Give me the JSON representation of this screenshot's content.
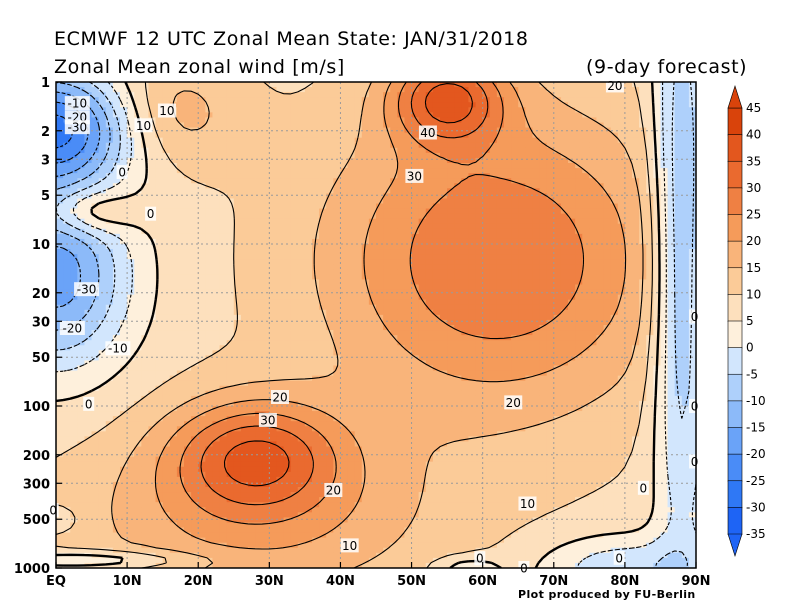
{
  "header": {
    "title_line1": "ECMWF 12 UTC Zonal Mean State: JAN/31/2018",
    "title_line2": "Zonal Mean zonal wind [m/s]",
    "title_right": "(9-day forecast)"
  },
  "footer": {
    "credit": "Plot produced by FU-Berlin"
  },
  "chart_data": {
    "type": "heatmap",
    "subtype": "filled-contour",
    "x_axis": {
      "tick_labels": [
        "EQ",
        "10N",
        "20N",
        "30N",
        "40N",
        "50N",
        "60N",
        "70N",
        "80N",
        "90N"
      ],
      "range_deg": [
        0,
        90
      ]
    },
    "y_axis": {
      "tick_labels": [
        "1",
        "2",
        "3",
        "5",
        "10",
        "20",
        "30",
        "50",
        "100",
        "200",
        "300",
        "500",
        "1000"
      ],
      "tick_values_hpa": [
        1,
        2,
        3,
        5,
        10,
        20,
        30,
        50,
        100,
        200,
        300,
        500,
        1000
      ],
      "range_hpa": [
        1000,
        1
      ],
      "scale": "log",
      "inverted": true
    },
    "grid": "dotted",
    "colorbar": {
      "labels": [
        "45",
        "40",
        "35",
        "30",
        "25",
        "20",
        "15",
        "10",
        "5",
        "0",
        "-5",
        "-10",
        "-15",
        "-20",
        "-25",
        "-30",
        "-35"
      ],
      "levels": [
        -35,
        -30,
        -25,
        -20,
        -15,
        -10,
        -5,
        0,
        5,
        10,
        15,
        20,
        25,
        30,
        35,
        40,
        45
      ],
      "colors": [
        "#1e64f5",
        "#2f78f5",
        "#4a8cf7",
        "#6aa3f8",
        "#8cbaf9",
        "#aed0fb",
        "#d2e6fd",
        "#fef0dc",
        "#fde0bd",
        "#fbcb98",
        "#f9b47a",
        "#f59b5a",
        "#ef8043",
        "#ea6a2f",
        "#e3571e",
        "#d9430b"
      ],
      "extend": "both"
    },
    "contour_labels": [
      {
        "text": "-10",
        "lat": 3,
        "p_hpa": 1.35
      },
      {
        "text": "-20",
        "lat": 3,
        "p_hpa": 1.65
      },
      {
        "text": "-30",
        "lat": 3,
        "p_hpa": 1.9
      },
      {
        "text": "10",
        "lat": 12.3,
        "p_hpa": 1.85
      },
      {
        "text": "10",
        "lat": 15.6,
        "p_hpa": 1.5
      },
      {
        "text": "0",
        "lat": 9.3,
        "p_hpa": 3.6
      },
      {
        "text": "0",
        "lat": 13.3,
        "p_hpa": 6.5
      },
      {
        "text": "-30",
        "lat": 4.3,
        "p_hpa": 19
      },
      {
        "text": "-20",
        "lat": 2.3,
        "p_hpa": 33
      },
      {
        "text": "-10",
        "lat": 8.7,
        "p_hpa": 44
      },
      {
        "text": "0",
        "lat": 4.6,
        "p_hpa": 97
      },
      {
        "text": "20",
        "lat": 31.5,
        "p_hpa": 88
      },
      {
        "text": "30",
        "lat": 29.8,
        "p_hpa": 122
      },
      {
        "text": "20",
        "lat": 39,
        "p_hpa": 330
      },
      {
        "text": "0",
        "lat": -0.4,
        "p_hpa": 440
      },
      {
        "text": "10",
        "lat": 41.3,
        "p_hpa": 725
      },
      {
        "text": "40",
        "lat": 52.3,
        "p_hpa": 2.05
      },
      {
        "text": "30",
        "lat": 50.4,
        "p_hpa": 3.8
      },
      {
        "text": "20",
        "lat": 78.6,
        "p_hpa": 1.05
      },
      {
        "text": "20",
        "lat": 64.3,
        "p_hpa": 95
      },
      {
        "text": "10",
        "lat": 66.3,
        "p_hpa": 400
      },
      {
        "text": "0",
        "lat": 82.6,
        "p_hpa": 320
      },
      {
        "text": "0",
        "lat": 59.6,
        "p_hpa": 870
      },
      {
        "text": "0",
        "lat": 79.2,
        "p_hpa": 865
      },
      {
        "text": "0",
        "lat": 65.8,
        "p_hpa": 1000
      },
      {
        "text": "0",
        "lat": 89.8,
        "p_hpa": 28
      },
      {
        "text": "0",
        "lat": 89.8,
        "p_hpa": 100
      },
      {
        "text": "0",
        "lat": 89.8,
        "p_hpa": 220
      }
    ]
  }
}
